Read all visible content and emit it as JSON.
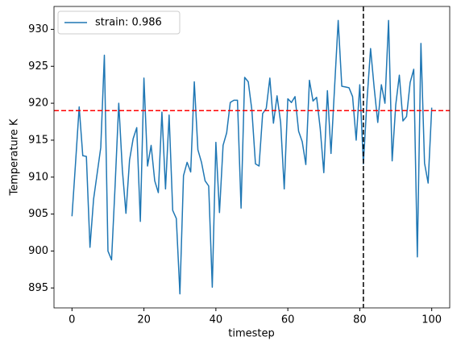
{
  "chart_data": {
    "type": "line",
    "x_label": "timestep",
    "y_label": "Temperature K",
    "x": [
      0,
      1,
      2,
      3,
      4,
      5,
      6,
      7,
      8,
      9,
      10,
      11,
      12,
      13,
      14,
      15,
      16,
      17,
      18,
      19,
      20,
      21,
      22,
      23,
      24,
      25,
      26,
      27,
      28,
      29,
      30,
      31,
      32,
      33,
      34,
      35,
      36,
      37,
      38,
      39,
      40,
      41,
      42,
      43,
      44,
      45,
      46,
      47,
      48,
      49,
      50,
      51,
      52,
      53,
      54,
      55,
      56,
      57,
      58,
      59,
      60,
      61,
      62,
      63,
      64,
      65,
      66,
      67,
      68,
      69,
      70,
      71,
      72,
      73,
      74,
      75,
      76,
      77,
      78,
      79,
      80,
      81,
      82,
      83,
      84,
      85,
      86,
      87,
      88,
      89,
      90,
      91,
      92,
      93,
      94,
      95,
      96,
      97,
      98,
      99,
      100
    ],
    "series": [
      {
        "name": "strain: 0.986",
        "color": "#1f77b4",
        "values": [
          904.7,
          912,
          919.5,
          912.9,
          912.8,
          900.5,
          907,
          910.5,
          914,
          926.5,
          900,
          898.8,
          909,
          920,
          911,
          905.1,
          912.3,
          915.2,
          916.7,
          904,
          923.4,
          911.5,
          914.3,
          909.5,
          907.9,
          918.8,
          908.4,
          918.4,
          905.5,
          904.4,
          894.2,
          910.2,
          912,
          910.7,
          922.9,
          913.7,
          912,
          909.5,
          908.8,
          895.1,
          914.7,
          905.2,
          914.3,
          916,
          920.1,
          920.4,
          920.4,
          905.8,
          923.5,
          922.9,
          919.1,
          911.8,
          911.5,
          918.6,
          919.3,
          923.4,
          917.3,
          921,
          917.4,
          908.4,
          920.6,
          920.1,
          920.9,
          916.2,
          914.8,
          911.7,
          923.1,
          920.3,
          920.8,
          916.6,
          910.6,
          921.7,
          913.2,
          922.2,
          931.2,
          922.3,
          922.2,
          922.1,
          920.9,
          915,
          922.5,
          911.8,
          920.3,
          927.4,
          922.1,
          917.4,
          922.5,
          920,
          931.2,
          912.2,
          919.8,
          923.8,
          917.6,
          918.2,
          922.8,
          924.6,
          899.2,
          928.1,
          911.9,
          909.2,
          919.4
        ]
      }
    ],
    "hline": {
      "y": 919,
      "color": "red"
    },
    "vline": {
      "x": 81,
      "color": "black"
    },
    "xlim": [
      -5,
      105
    ],
    "xticks": [
      0,
      20,
      40,
      60,
      80,
      100
    ],
    "ylim": [
      892.3,
      933.1
    ],
    "yticks": [
      895,
      900,
      905,
      910,
      915,
      920,
      925,
      930
    ],
    "legend": "upper left"
  }
}
